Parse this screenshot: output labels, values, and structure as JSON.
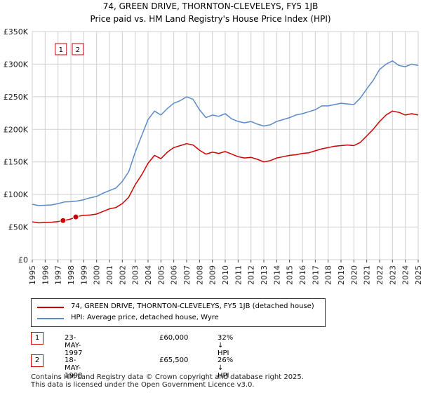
{
  "chart_data": {
    "type": "line",
    "title": "74, GREEN DRIVE, THORNTON-CLEVELEYS, FY5 1JB",
    "subtitle": "Price paid vs. HM Land Registry's House Price Index (HPI)",
    "xlabel": "",
    "ylabel": "",
    "xlim": [
      1995,
      2025
    ],
    "ylim": [
      0,
      350000
    ],
    "y_ticks": [
      {
        "value": 0,
        "label": "£0"
      },
      {
        "value": 50000,
        "label": "£50K"
      },
      {
        "value": 100000,
        "label": "£100K"
      },
      {
        "value": 150000,
        "label": "£150K"
      },
      {
        "value": 200000,
        "label": "£200K"
      },
      {
        "value": 250000,
        "label": "£250K"
      },
      {
        "value": 300000,
        "label": "£300K"
      },
      {
        "value": 350000,
        "label": "£350K"
      }
    ],
    "x_ticks": [
      "1995",
      "1996",
      "1997",
      "1998",
      "1999",
      "2000",
      "2001",
      "2002",
      "2003",
      "2004",
      "2005",
      "2006",
      "2007",
      "2008",
      "2009",
      "2010",
      "2011",
      "2012",
      "2013",
      "2014",
      "2015",
      "2016",
      "2017",
      "2018",
      "2019",
      "2020",
      "2021",
      "2022",
      "2023",
      "2024",
      "2025"
    ],
    "grid": true,
    "series": [
      {
        "name": "74, GREEN DRIVE, THORNTON-CLEVELEYS, FY5 1JB (detached house)",
        "color": "#cc0000",
        "x": [
          1995.0,
          1995.5,
          1996.0,
          1996.5,
          1997.0,
          1997.39,
          1997.7,
          1998.0,
          1998.38,
          1998.7,
          1999.0,
          1999.5,
          2000.0,
          2000.5,
          2001.0,
          2001.5,
          2002.0,
          2002.5,
          2003.0,
          2003.5,
          2004.0,
          2004.5,
          2005.0,
          2005.5,
          2006.0,
          2006.5,
          2007.0,
          2007.5,
          2008.0,
          2008.5,
          2009.0,
          2009.5,
          2010.0,
          2010.5,
          2011.0,
          2011.5,
          2012.0,
          2012.5,
          2013.0,
          2013.5,
          2014.0,
          2014.5,
          2015.0,
          2015.5,
          2016.0,
          2016.5,
          2017.0,
          2017.5,
          2018.0,
          2018.5,
          2019.0,
          2019.5,
          2020.0,
          2020.5,
          2021.0,
          2021.5,
          2022.0,
          2022.5,
          2023.0,
          2023.5,
          2024.0,
          2024.5,
          2025.0
        ],
        "values": [
          58000,
          56500,
          57000,
          57500,
          58500,
          60000,
          61000,
          62500,
          65500,
          67000,
          68000,
          68500,
          70000,
          74000,
          78000,
          80000,
          86000,
          96000,
          115000,
          130000,
          148000,
          160000,
          155000,
          165000,
          172000,
          175000,
          178000,
          176000,
          168000,
          162000,
          165000,
          163000,
          166000,
          162000,
          158000,
          156000,
          157000,
          154000,
          150000,
          152000,
          156000,
          158000,
          160000,
          161000,
          163000,
          164000,
          167000,
          170000,
          172000,
          174000,
          175000,
          176000,
          175000,
          180000,
          190000,
          200000,
          212000,
          222000,
          228000,
          226000,
          222000,
          224000,
          222000
        ]
      },
      {
        "name": "HPI: Average price, detached house, Wyre",
        "color": "#5a8ac6",
        "x": [
          1995.0,
          1995.5,
          1996.0,
          1996.5,
          1997.0,
          1997.5,
          1998.0,
          1998.5,
          1999.0,
          1999.5,
          2000.0,
          2000.5,
          2001.0,
          2001.5,
          2002.0,
          2002.5,
          2003.0,
          2003.5,
          2004.0,
          2004.5,
          2005.0,
          2005.5,
          2006.0,
          2006.5,
          2007.0,
          2007.5,
          2008.0,
          2008.5,
          2009.0,
          2009.5,
          2010.0,
          2010.5,
          2011.0,
          2011.5,
          2012.0,
          2012.5,
          2013.0,
          2013.5,
          2014.0,
          2014.5,
          2015.0,
          2015.5,
          2016.0,
          2016.5,
          2017.0,
          2017.5,
          2018.0,
          2018.5,
          2019.0,
          2019.5,
          2020.0,
          2020.5,
          2021.0,
          2021.5,
          2022.0,
          2022.5,
          2023.0,
          2023.5,
          2024.0,
          2024.5,
          2025.0
        ],
        "values": [
          85000,
          83000,
          83500,
          84000,
          86000,
          88500,
          89000,
          90000,
          92000,
          95000,
          97000,
          102000,
          106000,
          110000,
          120000,
          135000,
          165000,
          190000,
          215000,
          228000,
          222000,
          232000,
          240000,
          244000,
          250000,
          246000,
          230000,
          218000,
          222000,
          220000,
          224000,
          216000,
          212000,
          210000,
          212000,
          208000,
          205000,
          207000,
          212000,
          215000,
          218000,
          222000,
          224000,
          227000,
          230000,
          236000,
          236000,
          238000,
          240000,
          239000,
          238000,
          248000,
          262000,
          275000,
          292000,
          300000,
          305000,
          298000,
          296000,
          300000,
          298000
        ]
      }
    ],
    "sales": [
      {
        "id": "1",
        "x": 1997.39,
        "y": 60000
      },
      {
        "id": "2",
        "x": 1998.38,
        "y": 65500
      }
    ]
  },
  "legend": {
    "property_label": "74, GREEN DRIVE, THORNTON-CLEVELEYS, FY5 1JB (detached house)",
    "hpi_label": "HPI: Average price, detached house, Wyre"
  },
  "transactions": [
    {
      "num": "1",
      "date": "23-MAY-1997",
      "price": "£60,000",
      "hpi": "32% ↓ HPI"
    },
    {
      "num": "2",
      "date": "18-MAY-1998",
      "price": "£65,500",
      "hpi": "26% ↓ HPI"
    }
  ],
  "footer": {
    "line1": "Contains HM Land Registry data © Crown copyright and database right 2025.",
    "line2": "This data is licensed under the Open Government Licence v3.0."
  },
  "colors": {
    "property": "#cc0000",
    "hpi": "#5a8ac6",
    "grid": "#d0d0d0",
    "sale_band": "#dde6f5"
  }
}
